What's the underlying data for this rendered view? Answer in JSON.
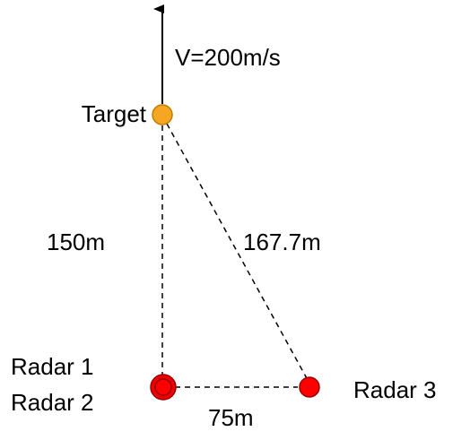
{
  "velocity_label": "V=200m/s",
  "nodes": [
    {
      "label": "Target"
    },
    {
      "label": "Radar 1"
    },
    {
      "label": "Radar 2"
    },
    {
      "label": "Radar 3"
    }
  ],
  "edges": [
    {
      "label": "150m"
    },
    {
      "label": "167.7m"
    },
    {
      "label": "75m"
    }
  ]
}
